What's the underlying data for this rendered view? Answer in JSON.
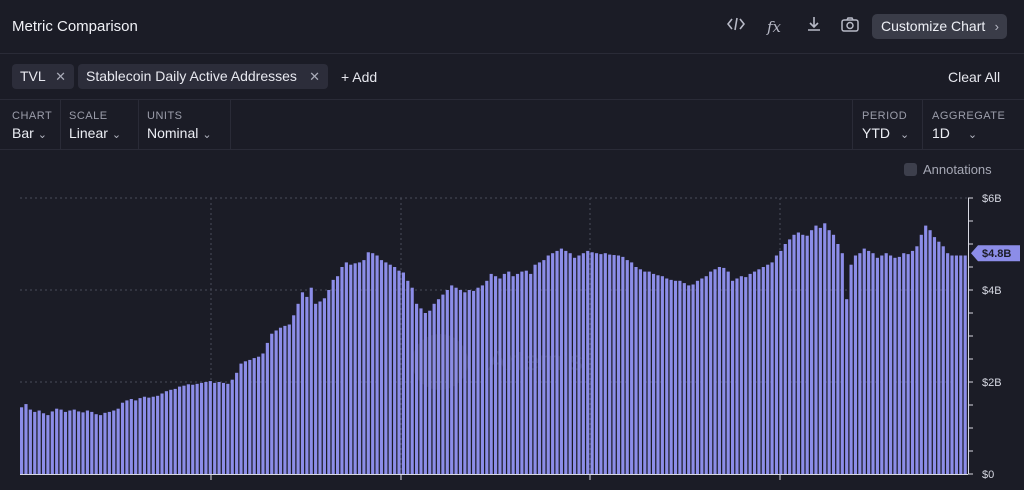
{
  "header": {
    "title": "Metric Comparison",
    "customize_label": "Customize Chart",
    "icons": [
      "code-icon",
      "formula-icon",
      "download-icon",
      "camera-icon"
    ]
  },
  "metrics": {
    "chips": [
      {
        "label": "TVL"
      },
      {
        "label": "Stablecoin Daily Active Addresses"
      }
    ],
    "add_label": "+ Add",
    "clear_label": "Clear All"
  },
  "controls": {
    "chart": {
      "label": "CHART",
      "value": "Bar"
    },
    "scale": {
      "label": "SCALE",
      "value": "Linear"
    },
    "units": {
      "label": "UNITS",
      "value": "Nominal"
    },
    "period": {
      "label": "PERIOD",
      "value": "YTD"
    },
    "aggregate": {
      "label": "AGGREGATE",
      "value": "1D"
    }
  },
  "annotations_label": "Annotations",
  "watermark": "Artemis",
  "colors": {
    "bar": "#8c8de8",
    "background": "#1b1c26",
    "current_badge": "#8c8de8"
  },
  "chart_data": {
    "type": "bar",
    "series": [
      {
        "values": [
          1.45,
          1.52,
          1.4,
          1.35,
          1.38,
          1.32,
          1.28,
          1.36,
          1.42,
          1.4,
          1.35,
          1.38,
          1.4,
          1.36,
          1.34,
          1.38,
          1.35,
          1.3,
          1.28,
          1.33,
          1.35,
          1.38,
          1.42,
          1.55,
          1.6,
          1.63,
          1.6,
          1.65,
          1.68,
          1.66,
          1.68,
          1.7,
          1.75,
          1.8,
          1.83,
          1.85,
          1.9,
          1.92,
          1.95,
          1.94,
          1.96,
          1.98,
          2.0,
          2.02,
          1.98,
          2.0,
          1.98,
          1.96,
          2.05,
          2.2,
          2.4,
          2.45,
          2.48,
          2.52,
          2.55,
          2.62,
          2.85,
          3.05,
          3.12,
          3.18,
          3.22,
          3.25,
          3.45,
          3.7,
          3.95,
          3.85,
          4.05,
          3.7,
          3.75,
          3.82,
          4.0,
          4.22,
          4.3,
          4.5,
          4.6,
          4.55,
          4.58,
          4.6,
          4.65,
          4.82,
          4.8,
          4.75,
          4.65,
          4.6,
          4.55,
          4.5,
          4.42,
          4.38,
          4.2,
          4.05,
          3.7,
          3.6,
          3.5,
          3.55,
          3.7,
          3.8,
          3.9,
          4.0,
          4.1,
          4.05,
          4.0,
          3.95,
          4.0,
          3.98,
          4.05,
          4.1,
          4.2,
          4.35,
          4.3,
          4.25,
          4.35,
          4.4,
          4.3,
          4.35,
          4.4,
          4.42,
          4.35,
          4.55,
          4.6,
          4.65,
          4.75,
          4.8,
          4.85,
          4.9,
          4.85,
          4.8,
          4.7,
          4.75,
          4.8,
          4.85,
          4.82,
          4.8,
          4.78,
          4.8,
          4.77,
          4.76,
          4.75,
          4.72,
          4.65,
          4.6,
          4.5,
          4.45,
          4.4,
          4.4,
          4.35,
          4.32,
          4.3,
          4.25,
          4.22,
          4.2,
          4.2,
          4.15,
          4.1,
          4.12,
          4.2,
          4.25,
          4.3,
          4.4,
          4.45,
          4.5,
          4.48,
          4.4,
          4.2,
          4.25,
          4.3,
          4.28,
          4.35,
          4.4,
          4.45,
          4.5,
          4.55,
          4.6,
          4.75,
          4.85,
          5.0,
          5.1,
          5.2,
          5.25,
          5.2,
          5.18,
          5.3,
          5.4,
          5.35,
          5.45,
          5.3,
          5.2,
          5.0,
          4.8,
          3.8,
          4.55,
          4.75,
          4.8,
          4.9,
          4.85,
          4.8,
          4.7,
          4.75,
          4.8,
          4.75,
          4.7,
          4.72,
          4.8,
          4.78,
          4.85,
          4.95,
          5.2,
          5.4,
          5.3,
          5.15,
          5.05,
          4.95,
          4.8,
          4.75,
          4.75,
          4.75,
          4.75
        ],
        "unit": "B"
      }
    ],
    "ylim": [
      0,
      6
    ],
    "yticks": [
      {
        "value": 0,
        "label": "$0"
      },
      {
        "value": 2,
        "label": "$2B"
      },
      {
        "value": 4,
        "label": "$4B"
      },
      {
        "value": 6,
        "label": "$6B"
      }
    ],
    "current_value_label": "$4.8B",
    "current_value": 4.8,
    "grid": true
  }
}
